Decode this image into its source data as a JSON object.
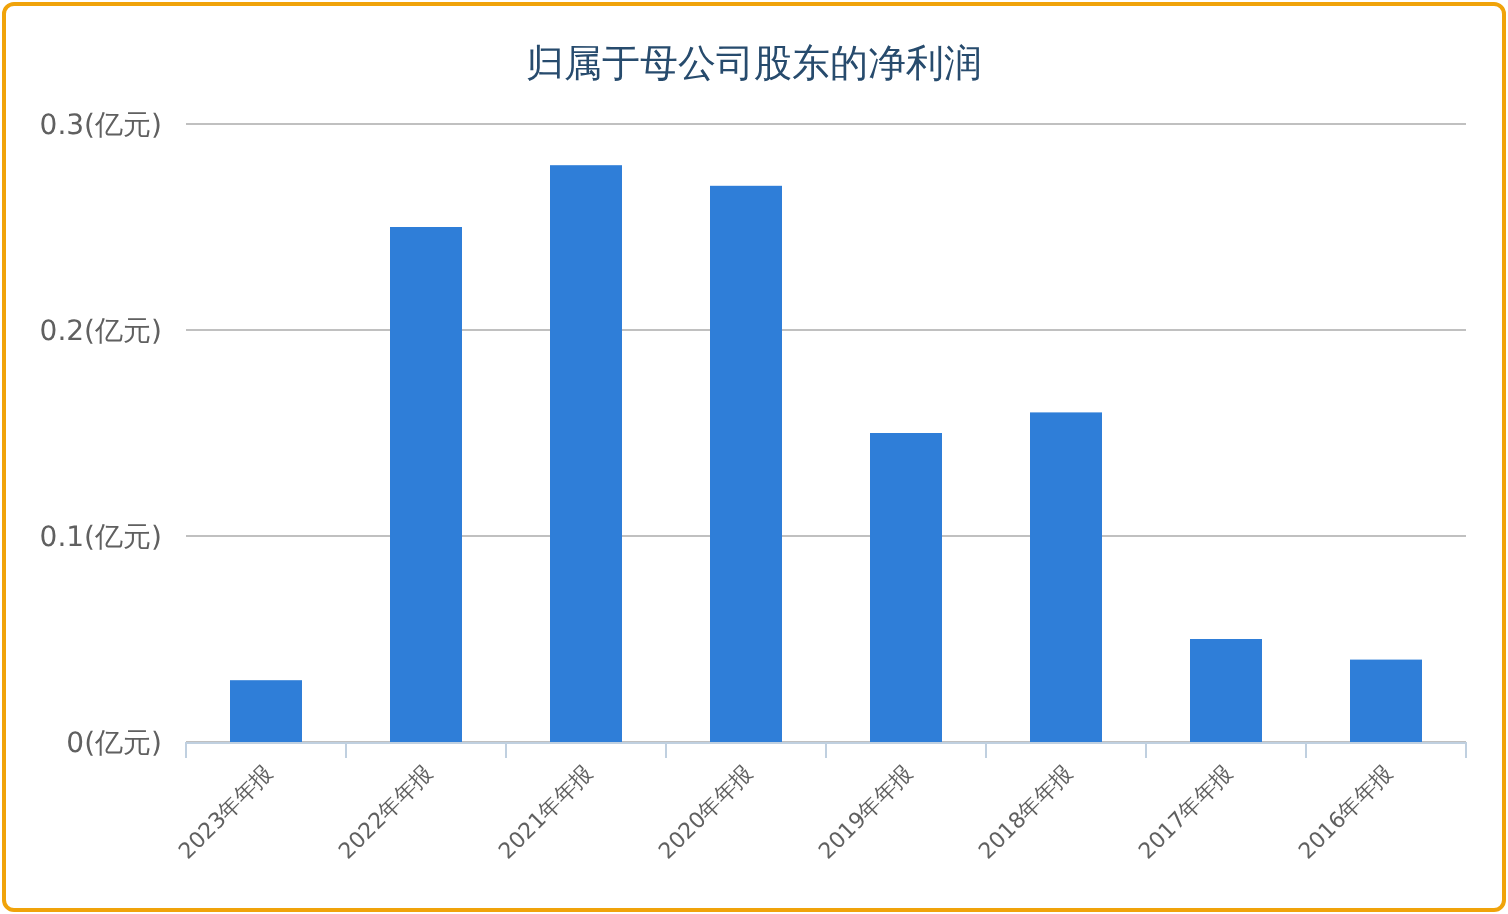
{
  "chart_data": {
    "type": "bar",
    "title": "归属于母公司股东的净利润",
    "categories": [
      "2023年年报",
      "2022年年报",
      "2021年年报",
      "2020年年报",
      "2019年年报",
      "2018年年报",
      "2017年年报",
      "2016年年报"
    ],
    "values": [
      0.03,
      0.25,
      0.28,
      0.27,
      0.15,
      0.16,
      0.05,
      0.04
    ],
    "color": "#2f7ed8",
    "ylim": [
      0,
      0.3
    ],
    "yticks": [
      {
        "value": 0,
        "label": "0(亿元)"
      },
      {
        "value": 0.1,
        "label": "0.1(亿元)"
      },
      {
        "value": 0.2,
        "label": "0.2(亿元)"
      },
      {
        "value": 0.3,
        "label": "0.3(亿元)"
      }
    ],
    "grid": "y"
  }
}
